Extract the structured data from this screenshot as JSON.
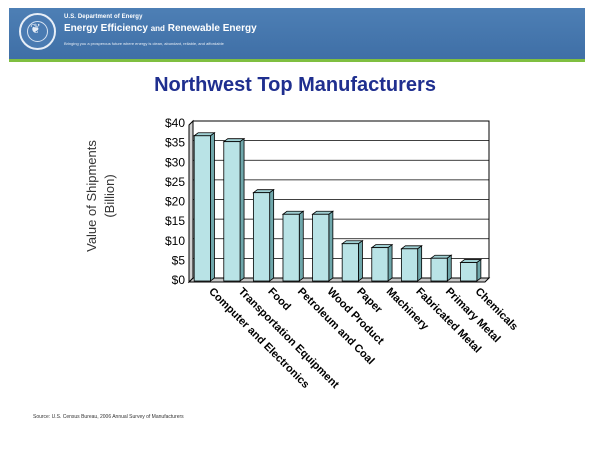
{
  "header": {
    "department": "U.S. Department of Energy",
    "program_prefix": "Energy Efficiency",
    "program_and": "and",
    "program_suffix": "Renewable Energy",
    "tagline": "Bringing you a prosperous future where energy is clean, abundant, reliable, and affordable",
    "colors": {
      "banner": "#4477ae",
      "stripe": "#7fbf40"
    }
  },
  "slide": {
    "source": "Source: U.S. Census Bureau, 2006 Annual Survey of Manufacturers"
  },
  "chart_data": {
    "type": "bar",
    "title": "Northwest Top Manufacturers",
    "ylabel": "Value of Shipments (Billion)",
    "ylabel_lines": [
      "Value of Shipments",
      "(Billion)"
    ],
    "xlabel": "",
    "ylim": [
      0,
      40
    ],
    "yticks": [
      "$0",
      "$5",
      "$10",
      "$15",
      "$20",
      "$25",
      "$30",
      "$35",
      "$40"
    ],
    "grid": true,
    "legend": "none",
    "bar_color": "#b9e3e6",
    "categories": [
      "Computer and Electronics",
      "Transportation Equipment",
      "Food",
      "Petroleum and Coal",
      "Wood Product",
      "Paper",
      "Machinery",
      "Fabricated Metal",
      "Primary Metal",
      "Chemicals"
    ],
    "values": [
      37,
      35.5,
      22.5,
      17,
      17,
      9.5,
      8.5,
      8.2,
      5.8,
      4.7
    ]
  }
}
